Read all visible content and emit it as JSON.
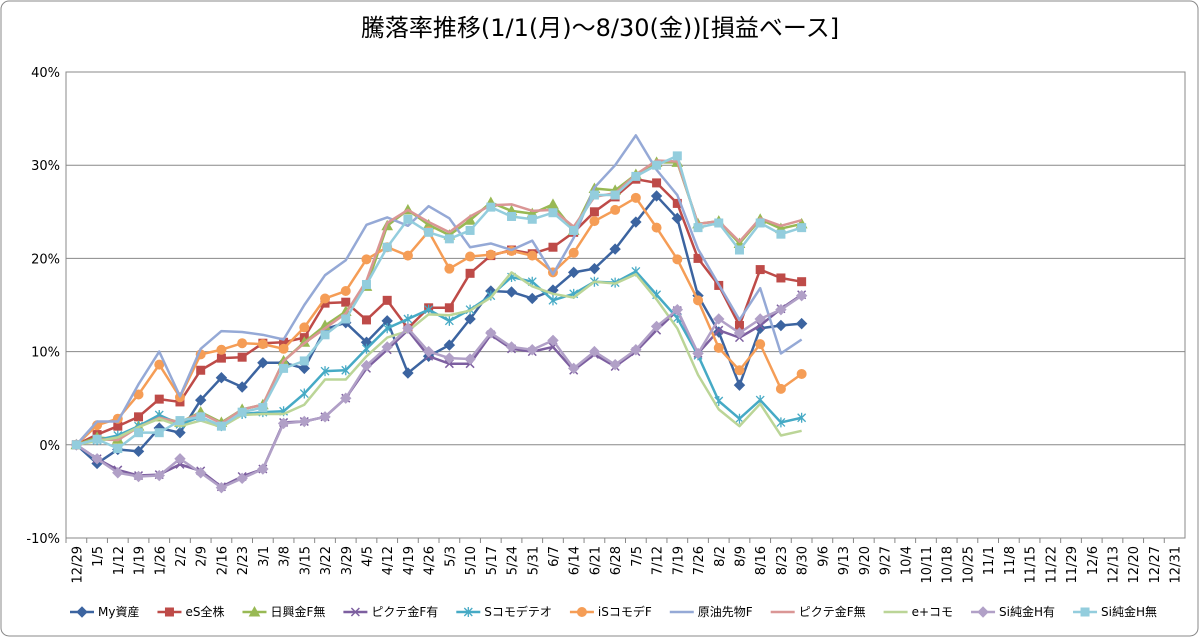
{
  "chart_data": {
    "type": "line",
    "title": "騰落率推移(1/1(月)～8/30(金))[損益ベース]",
    "categories": [
      "12/29",
      "1/5",
      "1/12",
      "1/19",
      "1/26",
      "2/2",
      "2/9",
      "2/16",
      "2/23",
      "3/1",
      "3/8",
      "3/15",
      "3/22",
      "3/29",
      "4/5",
      "4/12",
      "4/19",
      "4/26",
      "5/3",
      "5/10",
      "5/17",
      "5/24",
      "5/31",
      "6/7",
      "6/14",
      "6/21",
      "6/28",
      "7/5",
      "7/12",
      "7/19",
      "7/26",
      "8/2",
      "8/9",
      "8/16",
      "8/23",
      "8/30",
      "9/6",
      "9/13",
      "9/20",
      "9/27",
      "10/4",
      "10/11",
      "10/18",
      "10/25",
      "11/1",
      "11/8",
      "11/15",
      "11/22",
      "11/29",
      "12/6",
      "12/13",
      "12/20",
      "12/27",
      "12/31"
    ],
    "ylim": [
      -10,
      40
    ],
    "yticks": [
      {
        "value": -10,
        "label": "-10%"
      },
      {
        "value": 0,
        "label": "0%"
      },
      {
        "value": 10,
        "label": "10%"
      },
      {
        "value": 20,
        "label": "20%"
      },
      {
        "value": 30,
        "label": "30%"
      },
      {
        "value": 40,
        "label": "40%"
      }
    ],
    "grid": true,
    "legend": "bottom",
    "series": [
      {
        "name": "My資産",
        "color": "#3c64a0",
        "marker": "diamond",
        "values": [
          0,
          -2,
          -0.5,
          -0.7,
          1.8,
          1.3,
          4.8,
          7.2,
          6.2,
          8.8,
          8.8,
          8.2,
          12.4,
          13.1,
          11,
          13.3,
          7.7,
          9.5,
          10.7,
          13.5,
          16.5,
          16.4,
          15.7,
          16.6,
          18.5,
          18.9,
          21,
          23.9,
          26.7,
          24.3,
          16,
          12.1,
          6.4,
          12.5,
          12.8,
          13,
          null,
          null,
          null,
          null,
          null,
          null,
          null,
          null,
          null,
          null,
          null,
          null,
          null,
          null,
          null,
          null,
          null,
          null
        ]
      },
      {
        "name": "eS全株",
        "color": "#be4b48",
        "marker": "square",
        "values": [
          0,
          1.1,
          2,
          3,
          4.9,
          4.6,
          8,
          9.3,
          9.4,
          10.9,
          11,
          11.5,
          15.2,
          15.3,
          13.4,
          15.5,
          12.5,
          14.7,
          14.7,
          18.4,
          20.3,
          20.9,
          20.5,
          21.2,
          22.8,
          25,
          26.6,
          28.5,
          28.1,
          25.9,
          20,
          17.1,
          12.8,
          18.8,
          17.9,
          17.5,
          null,
          null,
          null,
          null,
          null,
          null,
          null,
          null,
          null,
          null,
          null,
          null,
          null,
          null,
          null,
          null,
          null,
          null
        ]
      },
      {
        "name": "日興金F無",
        "color": "#98b954",
        "marker": "triangle",
        "values": [
          0,
          0.8,
          0.6,
          2,
          3,
          2.4,
          3.5,
          2.4,
          3.8,
          4.3,
          9,
          11,
          12.8,
          14.3,
          17,
          23.5,
          25.2,
          23.6,
          22.5,
          24.1,
          26,
          25.1,
          24.8,
          25.8,
          23,
          27.5,
          27.3,
          29,
          30.3,
          30.3,
          23.7,
          24,
          21.6,
          24.2,
          23.2,
          23.7,
          null,
          null,
          null,
          null,
          null,
          null,
          null,
          null,
          null,
          null,
          null,
          null,
          null,
          null,
          null,
          null,
          null,
          null
        ]
      },
      {
        "name": "ピクテ金F有",
        "color": "#7d5fa0",
        "marker": "x",
        "values": [
          0,
          -1.5,
          -2.7,
          -3.3,
          -3.2,
          -2.1,
          -2.8,
          -4.5,
          -3.4,
          -2.6,
          2.4,
          2.5,
          3,
          5,
          8.2,
          10.2,
          12.3,
          9.5,
          8.7,
          8.7,
          11.8,
          10.3,
          10,
          10.5,
          8,
          9.7,
          8.4,
          10,
          12.3,
          14.4,
          9.8,
          12.3,
          11.5,
          12.8,
          14.6,
          16.1,
          null,
          null,
          null,
          null,
          null,
          null,
          null,
          null,
          null,
          null,
          null,
          null,
          null,
          null,
          null,
          null,
          null,
          null
        ]
      },
      {
        "name": "Sコモデテオ",
        "color": "#46aac5",
        "marker": "star",
        "values": [
          0,
          0.5,
          1,
          2,
          3.2,
          2.2,
          3,
          2,
          3.3,
          3.5,
          3.6,
          5.5,
          7.9,
          8,
          10.3,
          12.5,
          13.5,
          14.5,
          13.3,
          14.5,
          16,
          18,
          17.5,
          15.5,
          16.2,
          17.5,
          17.4,
          18.6,
          16.1,
          13.6,
          9.6,
          4.7,
          2.8,
          4.8,
          2.4,
          2.9,
          null,
          null,
          null,
          null,
          null,
          null,
          null,
          null,
          null,
          null,
          null,
          null,
          null,
          null,
          null,
          null,
          null,
          null
        ]
      },
      {
        "name": "iSコモデF",
        "color": "#f59d56",
        "marker": "circle",
        "values": [
          0,
          2.1,
          2.8,
          5.4,
          8.6,
          5.1,
          9.7,
          10.2,
          10.9,
          10.8,
          10.3,
          12.6,
          15.7,
          16.5,
          19.9,
          21.2,
          20.3,
          22.9,
          18.9,
          20.2,
          20.4,
          20.8,
          20.3,
          18.5,
          20.6,
          24,
          25.2,
          26.5,
          23.3,
          19.9,
          15.5,
          10.4,
          8,
          10.8,
          6,
          7.6,
          null,
          null,
          null,
          null,
          null,
          null,
          null,
          null,
          null,
          null,
          null,
          null,
          null,
          null,
          null,
          null,
          null,
          null
        ]
      },
      {
        "name": "原油先物F",
        "color": "#95a9d6",
        "marker": "none",
        "values": [
          0,
          2.5,
          2.5,
          6.5,
          10,
          5.2,
          10.3,
          12.2,
          12.1,
          11.8,
          11.3,
          15,
          18.2,
          19.8,
          23.6,
          24.4,
          23.5,
          25.6,
          24.3,
          21.2,
          21.6,
          20.9,
          21.9,
          18.3,
          22.2,
          27.6,
          30,
          33.2,
          29.5,
          26.8,
          21,
          17.2,
          13.4,
          16.8,
          9.8,
          11.3,
          null,
          null,
          null,
          null,
          null,
          null,
          null,
          null,
          null,
          null,
          null,
          null,
          null,
          null,
          null,
          null,
          null,
          null
        ]
      },
      {
        "name": "ピクテ金F無",
        "color": "#da9695",
        "marker": "none",
        "values": [
          0,
          0.6,
          0.5,
          1.9,
          2.9,
          2.4,
          3.4,
          2.3,
          3.8,
          4.3,
          9,
          10.9,
          12.5,
          14.1,
          17.6,
          23.8,
          25.2,
          23.9,
          22.8,
          24.5,
          25.7,
          25.8,
          25.1,
          25.2,
          23.4,
          26.6,
          27,
          29,
          30.5,
          30.4,
          23.7,
          24,
          21.8,
          24.3,
          23.5,
          24.1,
          null,
          null,
          null,
          null,
          null,
          null,
          null,
          null,
          null,
          null,
          null,
          null,
          null,
          null,
          null,
          null,
          null,
          null
        ]
      },
      {
        "name": "e+コモ",
        "color": "#bbd597",
        "marker": "none",
        "values": [
          0,
          0.4,
          0.8,
          1.9,
          2.8,
          2,
          2.6,
          1.9,
          3.2,
          3.3,
          3.3,
          4.3,
          7,
          7,
          9.5,
          11.5,
          12.2,
          14,
          13.9,
          14.4,
          15.8,
          18.5,
          17,
          16.2,
          15.8,
          17.5,
          17.3,
          18.3,
          15.6,
          12.5,
          7.5,
          3.8,
          2,
          4.4,
          1,
          1.5,
          null,
          null,
          null,
          null,
          null,
          null,
          null,
          null,
          null,
          null,
          null,
          null,
          null,
          null,
          null,
          null,
          null,
          null
        ]
      },
      {
        "name": "Si純金H有",
        "color": "#b1a0c7",
        "marker": "diamond",
        "values": [
          0,
          -1.5,
          -3,
          -3.4,
          -3.3,
          -1.5,
          -3,
          -4.6,
          -3.6,
          -2.6,
          2.3,
          2.5,
          3,
          5,
          8.5,
          10.5,
          12.5,
          10,
          9.3,
          9.2,
          12,
          10.5,
          10.2,
          11.2,
          8.2,
          10,
          8.6,
          10.2,
          12.7,
          14.5,
          9.8,
          13.5,
          12,
          13.5,
          14.5,
          16,
          null,
          null,
          null,
          null,
          null,
          null,
          null,
          null,
          null,
          null,
          null,
          null,
          null,
          null,
          null,
          null,
          null,
          null
        ]
      },
      {
        "name": "Si純金H無",
        "color": "#93cddd",
        "marker": "square",
        "values": [
          0,
          0.6,
          -0.4,
          1.3,
          1.3,
          2.6,
          3,
          2,
          3.5,
          4,
          8.2,
          9,
          11.8,
          13.5,
          17.2,
          21.2,
          24.2,
          22.8,
          22.1,
          23,
          25.5,
          24.5,
          24.2,
          24.9,
          23,
          26.8,
          26.8,
          28.8,
          30,
          31,
          23.3,
          23.8,
          20.9,
          23.8,
          22.6,
          23.3,
          null,
          null,
          null,
          null,
          null,
          null,
          null,
          null,
          null,
          null,
          null,
          null,
          null,
          null,
          null,
          null,
          null,
          null
        ]
      }
    ]
  }
}
